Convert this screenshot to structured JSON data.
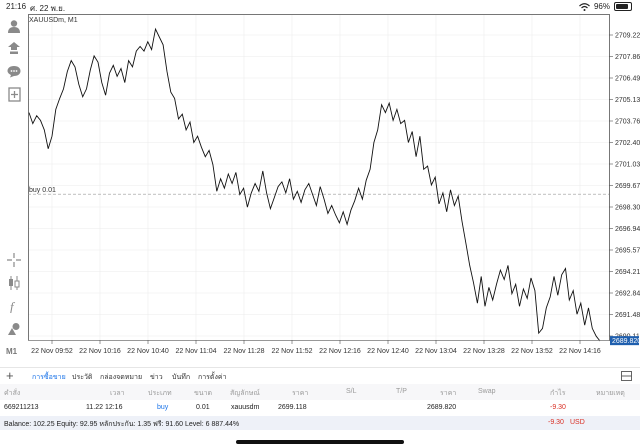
{
  "status": {
    "time": "21:16",
    "date": "ศ. 22 พ.ย.",
    "battery": "96%"
  },
  "toolbar": {
    "icons": [
      "account-icon",
      "trade-icon",
      "chat-icon",
      "new-order-icon",
      "crosshair-icon",
      "candles-icon",
      "function-icon",
      "objects-icon"
    ],
    "timeframe": "M1"
  },
  "chart": {
    "symbol_label": "XAUUSDm, M1",
    "price_levels": [
      "2709.225",
      "2707.860",
      "2706.495",
      "2705.130",
      "2703.765",
      "2702.400",
      "2701.035",
      "2699.670",
      "2698.305",
      "2696.940",
      "2695.575",
      "2694.210",
      "2692.845",
      "2691.480",
      "2690.115"
    ],
    "current_price": "2689.820",
    "buy_line_label": "buy 0.01",
    "buy_line_price": 2699.118,
    "time_labels": [
      "22 Nov 09:52",
      "22 Nov 10:16",
      "22 Nov 10:40",
      "22 Nov 11:04",
      "22 Nov 11:28",
      "22 Nov 11:52",
      "22 Nov 12:16",
      "22 Nov 12:40",
      "22 Nov 13:04",
      "22 Nov 13:28",
      "22 Nov 13:52",
      "22 Nov 14:16"
    ],
    "price_series": [
      2704.3,
      2703.6,
      2704.1,
      2703.8,
      2703.2,
      2702.0,
      2702.8,
      2704.5,
      2705.2,
      2705.8,
      2706.9,
      2707.6,
      2707.2,
      2706.1,
      2705.3,
      2705.8,
      2707.0,
      2707.9,
      2707.5,
      2706.2,
      2705.4,
      2706.8,
      2707.3,
      2706.6,
      2707.1,
      2706.2,
      2707.6,
      2707.2,
      2708.2,
      2708.5,
      2708.2,
      2708.8,
      2708.3,
      2709.6,
      2709.1,
      2708.6,
      2706.9,
      2705.6,
      2705.2,
      2703.9,
      2704.2,
      2703.2,
      2703.7,
      2702.4,
      2702.8,
      2702.1,
      2701.5,
      2701.9,
      2701.0,
      2699.3,
      2700.1,
      2699.5,
      2700.4,
      2699.8,
      2700.5,
      2699.1,
      2699.5,
      2698.3,
      2699.2,
      2699.8,
      2699.3,
      2700.6,
      2699.2,
      2698.2,
      2698.9,
      2699.6,
      2699.9,
      2699.2,
      2700.1,
      2698.8,
      2699.3,
      2698.6,
      2699.4,
      2699.8,
      2699.1,
      2698.4,
      2699.6,
      2698.8,
      2697.9,
      2698.4,
      2697.8,
      2697.3,
      2698.0,
      2697.2,
      2698.1,
      2698.7,
      2699.5,
      2698.8,
      2700.0,
      2700.7,
      2702.4,
      2703.2,
      2704.8,
      2704.3,
      2704.9,
      2703.8,
      2704.5,
      2703.6,
      2703.8,
      2702.4,
      2703.1,
      2701.5,
      2702.8,
      2700.7,
      2700.9,
      2699.7,
      2700.2,
      2698.5,
      2699.2,
      2698.0,
      2699.4,
      2698.4,
      2699.0,
      2697.4,
      2696.0,
      2694.6,
      2693.5,
      2692.2,
      2693.9,
      2692.0,
      2693.2,
      2692.4,
      2693.4,
      2694.3,
      2693.7,
      2694.6,
      2692.8,
      2693.4,
      2692.0,
      2693.1,
      2692.5,
      2693.8,
      2693.0,
      2690.3,
      2690.6,
      2691.9,
      2692.6,
      2693.9,
      2692.7,
      2694.0,
      2694.4,
      2692.4,
      2693.0,
      2691.5,
      2692.2,
      2690.8,
      2691.9,
      2690.6,
      2690.1,
      2689.8
    ]
  },
  "tabs": [
    "การซื้อขาย",
    "ประวัติ",
    "กล่องจดหมาย",
    "ข่าว",
    "บันทึก",
    "การตั้งค่า"
  ],
  "positions": {
    "headers": [
      "คำสั่ง",
      "เวลา",
      "ประเภท",
      "ขนาด",
      "สัญลักษณ์",
      "ราคา",
      "S/L",
      "T/P",
      "ราคา",
      "Swap",
      "กำไร",
      "หมายเหตุ"
    ],
    "rows": [
      {
        "order": "669211213",
        "time": "11.22 12:16",
        "type": "buy",
        "size": "0.01",
        "symbol": "xauusdm",
        "price": "2699.118",
        "current": "2689.820",
        "profit": "-9.30"
      }
    ],
    "balance_text": "Balance: 102.25 Equity: 92.95 หลักประกัน: 1.35 ฟรี: 91.60 Level: 6 887.44%",
    "total_profit": "-9.30",
    "currency": "USD"
  },
  "colors": {
    "accent": "#1a73e8",
    "loss": "#d93025",
    "price_tag": "#1f5fae"
  }
}
